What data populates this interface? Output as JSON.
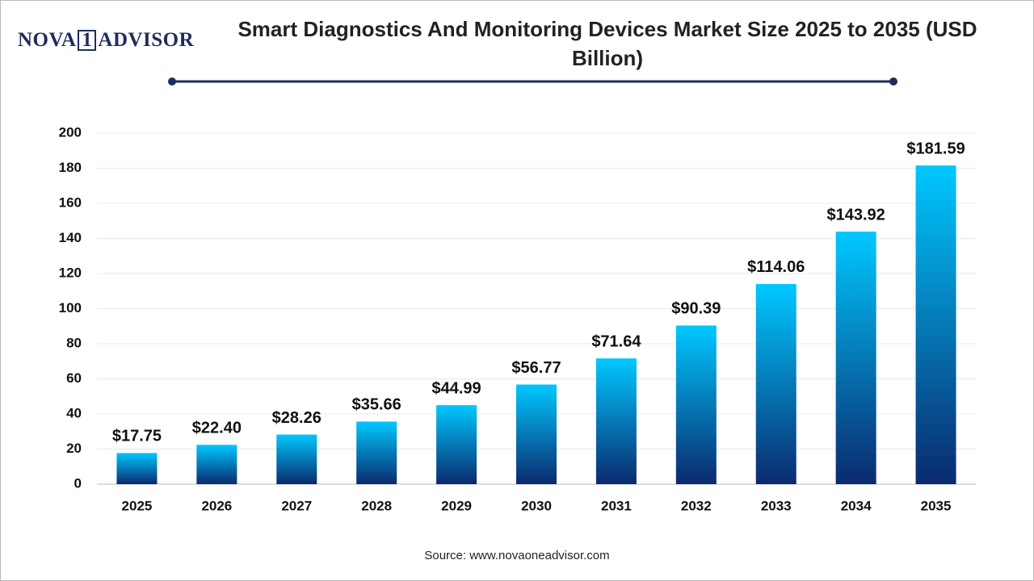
{
  "chart_data": {
    "type": "bar",
    "title": "Smart Diagnostics And Monitoring Devices Market Size 2025 to 2035 (USD Billion)",
    "categories": [
      "2025",
      "2026",
      "2027",
      "2028",
      "2029",
      "2030",
      "2031",
      "2032",
      "2033",
      "2034",
      "2035"
    ],
    "values": [
      17.75,
      22.4,
      28.26,
      35.66,
      44.99,
      56.77,
      71.64,
      90.39,
      114.06,
      143.92,
      181.59
    ],
    "value_labels": [
      "$17.75",
      "$22.40",
      "$28.26",
      "$35.66",
      "$44.99",
      "$56.77",
      "$71.64",
      "$90.39",
      "$114.06",
      "$143.92",
      "$181.59"
    ],
    "colors": [
      "#00c8ff",
      "#0a2a6e"
    ],
    "ylim": [
      0,
      200
    ],
    "yticks": [
      0,
      20,
      40,
      60,
      80,
      100,
      120,
      140,
      160,
      180,
      200
    ],
    "grid": true
  },
  "logo": {
    "left": "NOVA",
    "mark": "1",
    "right": "ADVISOR"
  },
  "source": "Source: www.novaoneadvisor.com"
}
